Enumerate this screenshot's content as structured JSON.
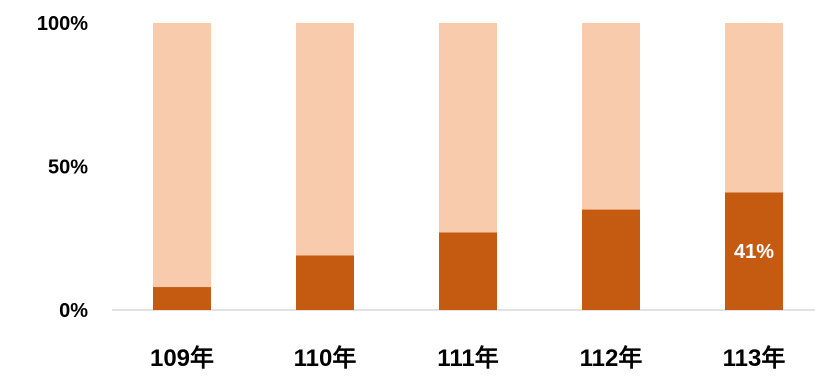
{
  "chart_data": {
    "type": "bar",
    "stacked": "percent",
    "categories": [
      "109年",
      "110年",
      "111年",
      "112年",
      "113年"
    ],
    "series": [
      {
        "values": [
          8,
          19,
          27,
          35,
          41
        ],
        "color": "#C55A11"
      },
      {
        "values": [
          92,
          81,
          73,
          65,
          59
        ],
        "color": "#F8CBAD"
      }
    ],
    "data_labels": [
      null,
      null,
      null,
      null,
      "41%"
    ],
    "ytick_labels": [
      "0%",
      "50%",
      "100%"
    ],
    "yticks": [
      0,
      50,
      100
    ],
    "ylim": [
      0,
      100
    ],
    "title": "",
    "xlabel": "",
    "ylabel": "",
    "grid": false,
    "legend": "none"
  }
}
